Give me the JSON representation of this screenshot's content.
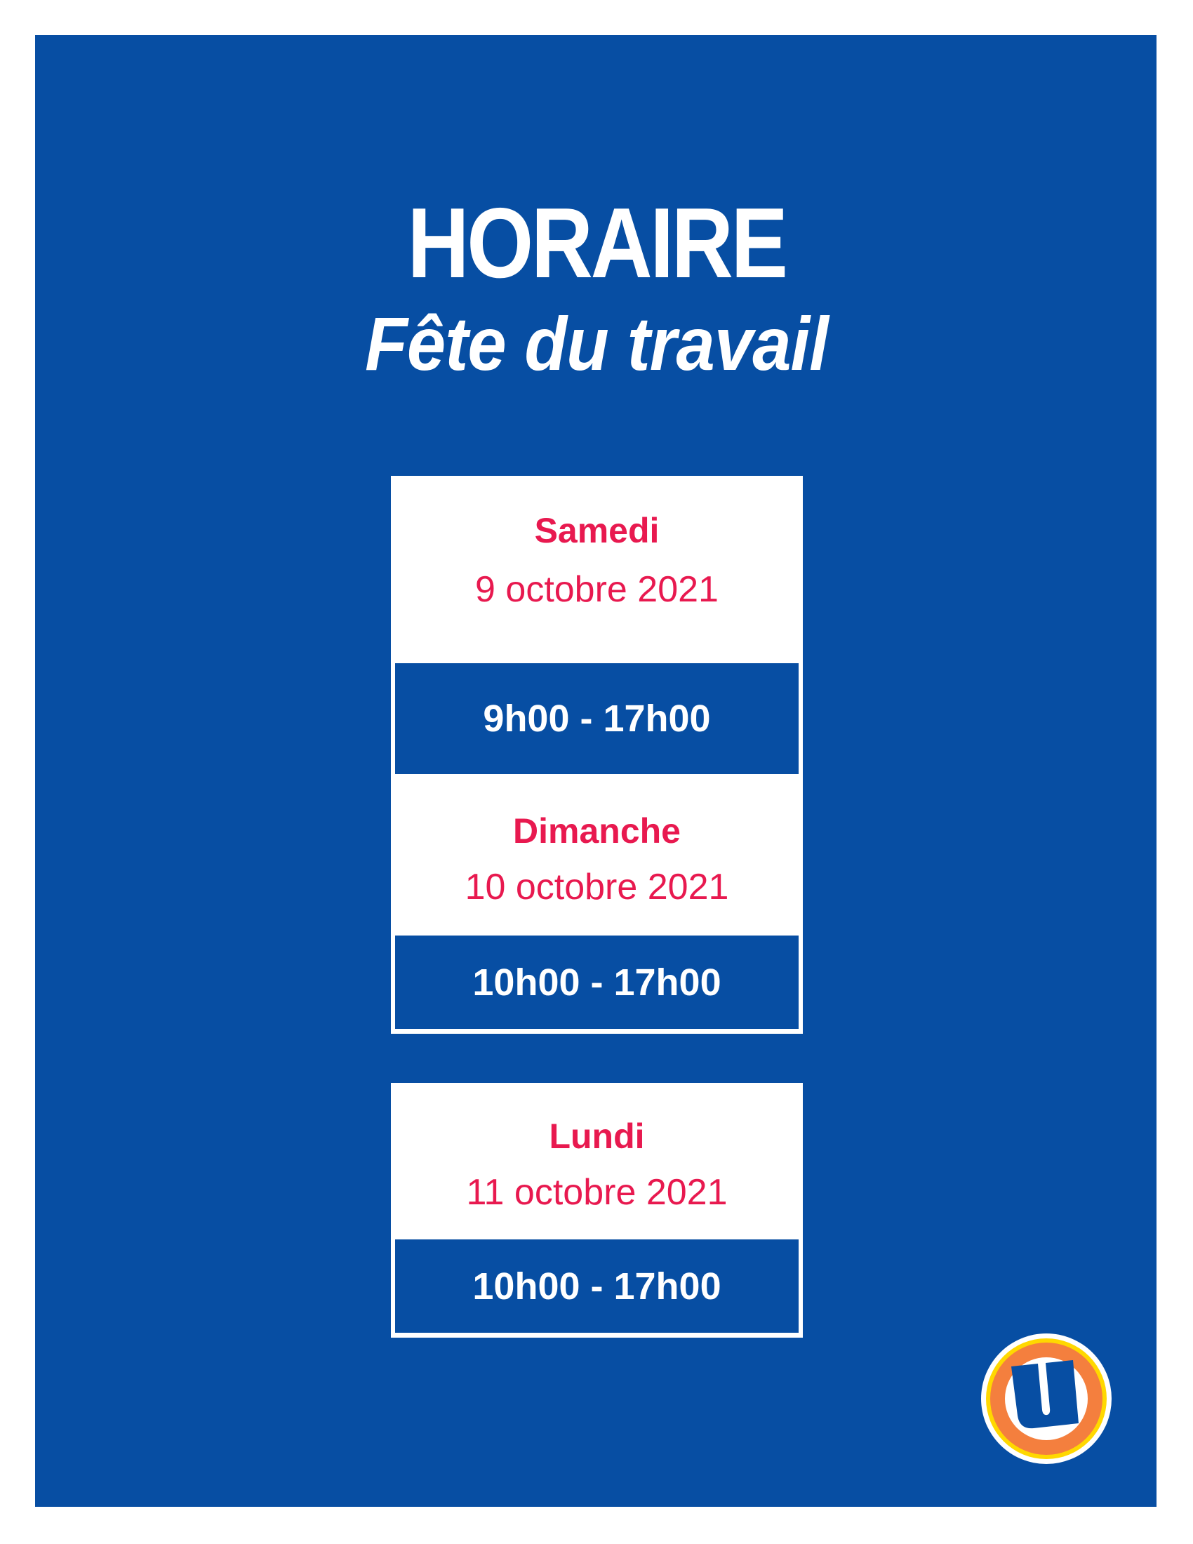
{
  "header": {
    "title": "HORAIRE",
    "subtitle": "Fête du travail"
  },
  "schedule": [
    {
      "day": "Samedi",
      "date": "9 octobre 2021",
      "hours": "9h00 - 17h00"
    },
    {
      "day": "Dimanche",
      "date": "10 octobre 2021",
      "hours": "10h00 - 17h00"
    },
    {
      "day": "Lundi",
      "date": "11 octobre 2021",
      "hours": "10h00 - 17h00"
    }
  ],
  "colors": {
    "background": "#074ea3",
    "accent": "#e8194f",
    "logo_ring": "#f47f3e",
    "logo_outer": "#ffd800"
  },
  "logo": {
    "icon": "u-logo-icon",
    "text": "U"
  }
}
